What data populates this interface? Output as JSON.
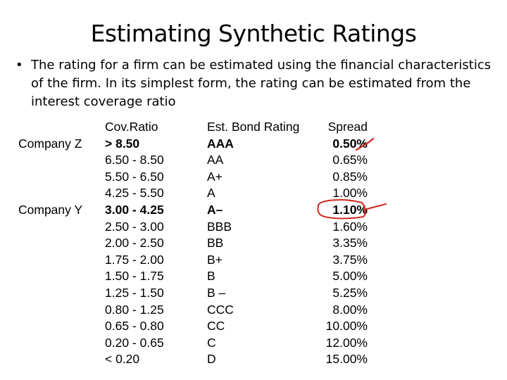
{
  "title": "Estimating Synthetic Ratings",
  "bullet": "The rating for a firm can be estimated using the financial characteristics of the firm. In its simplest form, the rating can be estimated from the interest coverage ratio",
  "headers": {
    "ratio": "Cov.Ratio",
    "rating": "Est. Bond Rating",
    "spread": "Spread"
  },
  "companies": {
    "z": "Company Z",
    "y": "Company Y"
  },
  "rows": [
    {
      "ratio": "> 8.50",
      "rating": "AAA",
      "spread": "0.50%"
    },
    {
      "ratio": "6.50 - 8.50",
      "rating": "AA",
      "spread": "0.65%"
    },
    {
      "ratio": "5.50 - 6.50",
      "rating": "A+",
      "spread": "0.85%"
    },
    {
      "ratio": "4.25 - 5.50",
      "rating": "A",
      "spread": "1.00%"
    },
    {
      "ratio": "3.00 - 4.25",
      "rating": "A–",
      "spread": "1.10%"
    },
    {
      "ratio": "2.50 - 3.00",
      "rating": "BBB",
      "spread": "1.60%"
    },
    {
      "ratio": "2.00 - 2.50",
      "rating": "BB",
      "spread": "3.35%"
    },
    {
      "ratio": "1.75 - 2.00",
      "rating": "B+",
      "spread": "3.75%"
    },
    {
      "ratio": "1.50 - 1.75",
      "rating": "B",
      "spread": "5.00%"
    },
    {
      "ratio": "1.25 - 1.50",
      "rating": "B –",
      "spread": "5.25%"
    },
    {
      "ratio": "0.80 - 1.25",
      "rating": "CCC",
      "spread": "8.00%"
    },
    {
      "ratio": "0.65 - 0.80",
      "rating": "CC",
      "spread": "10.00%"
    },
    {
      "ratio": "0.20 - 0.65",
      "rating": "C",
      "spread": "12.00%"
    },
    {
      "ratio": "< 0.20",
      "rating": "D",
      "spread": "15.00%"
    }
  ],
  "colors": {
    "text": "#000000",
    "ink": "#d0281e"
  }
}
